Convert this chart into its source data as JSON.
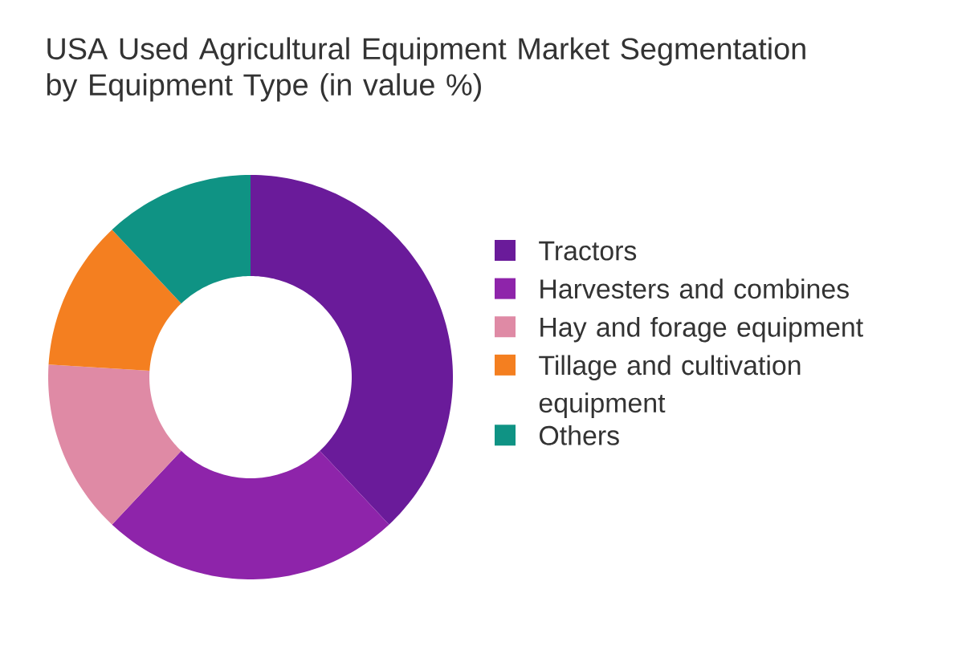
{
  "chart_data": {
    "type": "donut",
    "title": "USA Used Agricultural Equipment Market Segmentation by Equipment Type (in value %)",
    "categories": [
      "Tractors",
      "Harvesters and combines",
      "Hay and forage equipment",
      "Tillage and cultivation equipment",
      "Others"
    ],
    "values": [
      38,
      24,
      14,
      12,
      12
    ],
    "colors": [
      "#6a1b9a",
      "#8e24aa",
      "#df8aa5",
      "#f47f20",
      "#0f9384"
    ],
    "legend": "right"
  }
}
